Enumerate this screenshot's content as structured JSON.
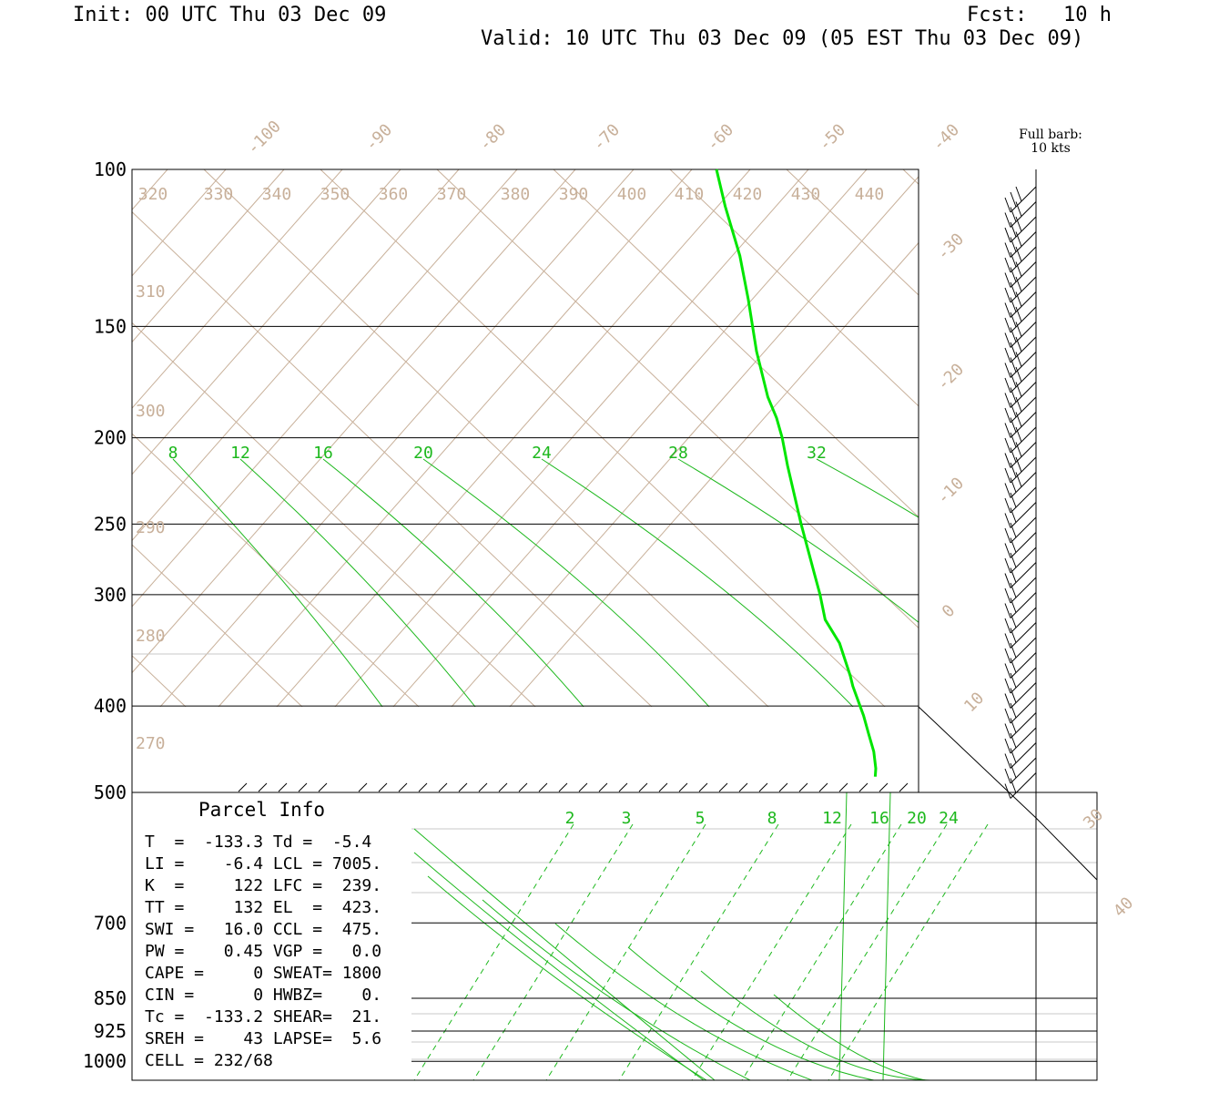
{
  "header": {
    "init": "Init: 00 UTC Thu 03 Dec 09",
    "fcst": "Fcst:   10 h",
    "valid": "Valid: 10 UTC Thu 03 Dec 09 (05 EST Thu 03 Dec 09)"
  },
  "barb_note": [
    "Full barb:",
    "10 kts"
  ],
  "colors": {
    "temperature": "#00e600",
    "mixing_ratio": "#1db81d",
    "grid_tan": "#c8b09a"
  },
  "chart_data": {
    "type": "skew-t sounding",
    "pressure_levels": [
      {
        "p": 100,
        "label": "100"
      },
      {
        "p": 150,
        "label": "150"
      },
      {
        "p": 200,
        "label": "200"
      },
      {
        "p": 250,
        "label": "250"
      },
      {
        "p": 300,
        "label": "300"
      },
      {
        "p": 400,
        "label": "400"
      },
      {
        "p": 500,
        "label": "500"
      },
      {
        "p": 700,
        "label": "700"
      },
      {
        "p": 850,
        "label": "850"
      },
      {
        "p": 925,
        "label": "925"
      },
      {
        "p": 1000,
        "label": "1000"
      }
    ],
    "isotherms": [
      "-100",
      "-90",
      "-80",
      "-70",
      "-60",
      "-50",
      "-40",
      "-30",
      "-20",
      "-10",
      "0",
      "10",
      "30",
      "40"
    ],
    "isentrope_labels_top": [
      "320",
      "330",
      "340",
      "350",
      "360",
      "370",
      "380",
      "390",
      "400",
      "410",
      "420",
      "430",
      "440"
    ],
    "isentrope_labels_left": [
      "310",
      "300",
      "290",
      "280",
      "270"
    ],
    "mixing_ratio_labels_upper": [
      "8",
      "12",
      "16",
      "20",
      "24",
      "28",
      "32"
    ],
    "mixing_ratio_labels_lower": [
      "2",
      "3",
      "5",
      "8",
      "12",
      "16",
      "20",
      "24"
    ],
    "temperature_profile": [
      {
        "p": 100,
        "t": -68
      },
      {
        "p": 110,
        "t": -65
      },
      {
        "p": 125,
        "t": -60
      },
      {
        "p": 140,
        "t": -57
      },
      {
        "p": 160,
        "t": -54
      },
      {
        "p": 180,
        "t": -50
      },
      {
        "p": 190,
        "t": -47
      },
      {
        "p": 200,
        "t": -45
      },
      {
        "p": 215,
        "t": -43
      },
      {
        "p": 250,
        "t": -38
      },
      {
        "p": 285,
        "t": -33
      },
      {
        "p": 300,
        "t": -31
      },
      {
        "p": 320,
        "t": -29
      },
      {
        "p": 340,
        "t": -24
      },
      {
        "p": 370,
        "t": -20
      },
      {
        "p": 380,
        "t": -19
      },
      {
        "p": 410,
        "t": -15
      },
      {
        "p": 430,
        "t": -13
      },
      {
        "p": 450,
        "t": -11
      },
      {
        "p": 470,
        "t": -10
      },
      {
        "p": 480,
        "t": -10
      }
    ],
    "wind_barbs_count": 40
  },
  "parcel_info": {
    "title": "Parcel Info",
    "rows": [
      "T  =  -133.3 Td =  -5.4",
      "LI =    -6.4 LCL = 7005.",
      "K  =     122 LFC =  239.",
      "TT =     132 EL  =  423.",
      "SWI =   16.0 CCL =  475.",
      "PW =    0.45 VGP =   0.0",
      "CAPE =     0 SWEAT= 1800",
      "CIN =      0 HWBZ=    0.",
      "Tc =  -133.2 SHEAR=  21.",
      "SREH =    43 LAPSE=  5.6",
      "CELL = 232/68"
    ]
  }
}
